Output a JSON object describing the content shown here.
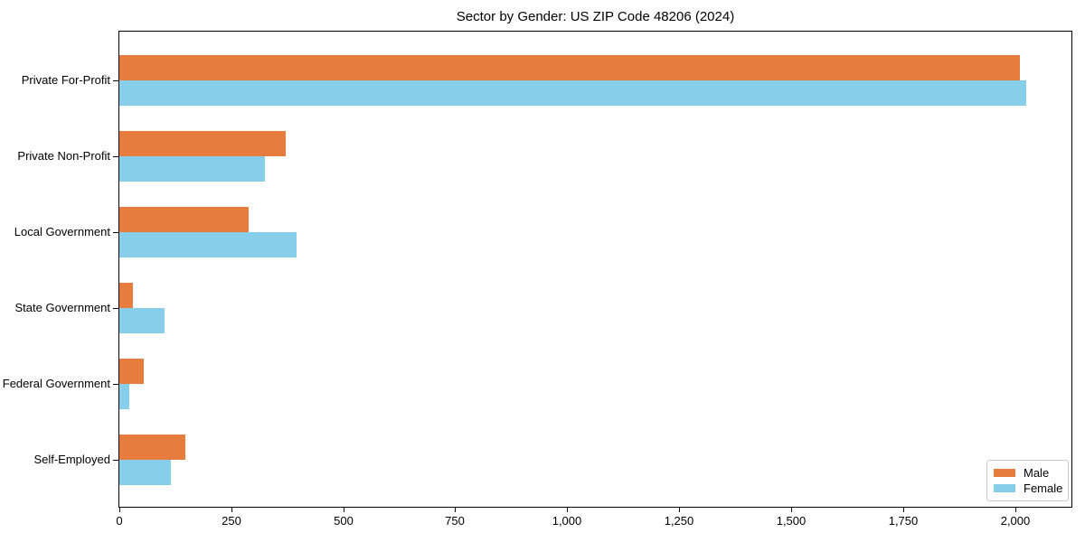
{
  "title": "Sector by Gender: US ZIP Code 48206 (2024)",
  "chart_data": {
    "type": "bar",
    "orientation": "horizontal",
    "title": "Sector by Gender: US ZIP Code 48206 (2024)",
    "categories": [
      "Private For-Profit",
      "Private Non-Profit",
      "Local Government",
      "State Government",
      "Federal Government",
      "Self-Employed"
    ],
    "series": [
      {
        "name": "Male",
        "color": "#e67c3e",
        "values": [
          2011,
          372,
          288,
          30,
          55,
          148
        ]
      },
      {
        "name": "Female",
        "color": "#87ceeb",
        "values": [
          2025,
          326,
          396,
          100,
          22,
          116
        ]
      }
    ],
    "xlim": [
      0,
      2126
    ],
    "x_ticks": [
      0,
      250,
      500,
      750,
      1000,
      1250,
      1500,
      1750,
      2000
    ],
    "x_tick_labels": [
      "0",
      "250",
      "500",
      "750",
      "1,000",
      "1,250",
      "1,500",
      "1,750",
      "2,000"
    ],
    "xlabel": "",
    "ylabel": "",
    "grid": false,
    "legend_position": "lower-right"
  },
  "colors": {
    "male": "#e67c3e",
    "female": "#87ceeb",
    "frame": "#000000",
    "legend_border": "#c8c8c8",
    "background": "#ffffff",
    "text": "#000000"
  }
}
